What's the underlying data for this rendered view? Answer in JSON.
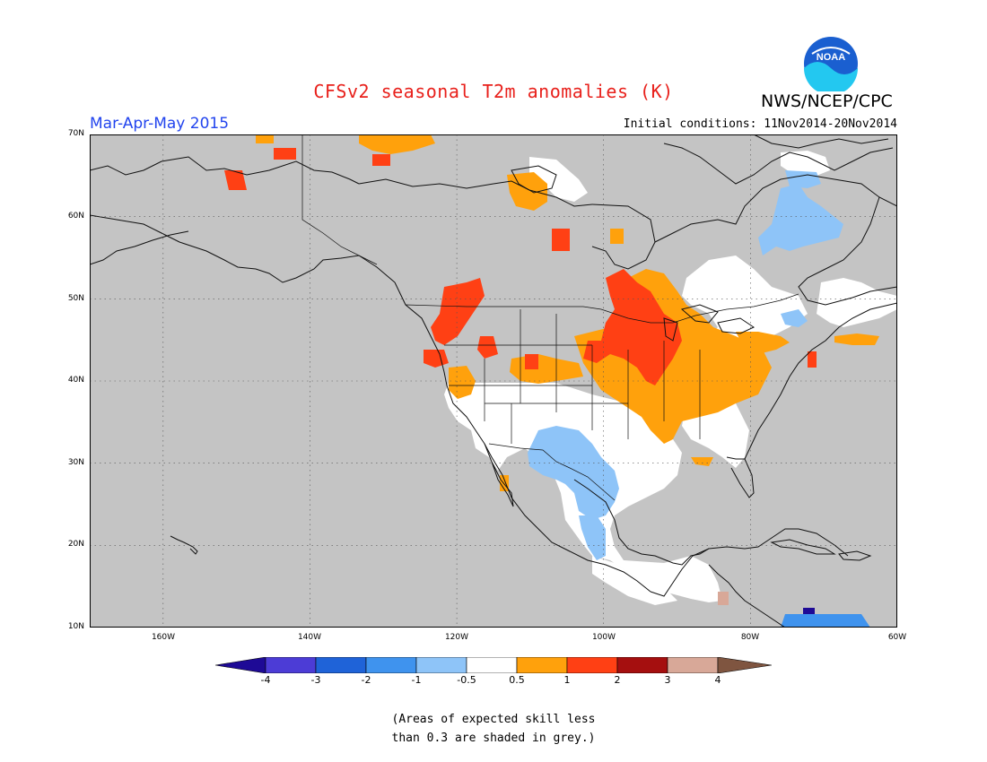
{
  "header": {
    "title": "CFSv2 seasonal T2m anomalies (K)",
    "org": "NWS/NCEP/CPC",
    "logo_text": "NOAA",
    "season": "Mar-Apr-May 2015",
    "initial_conditions": "Initial conditions: 11Nov2014-20Nov2014"
  },
  "map": {
    "extent": {
      "lon_min": -170,
      "lon_max": -60,
      "lat_min": 10,
      "lat_max": 70
    },
    "lat_labels": [
      "70N",
      "60N",
      "50N",
      "40N",
      "30N",
      "20N",
      "10N"
    ],
    "lon_labels": [
      "160W",
      "140W",
      "120W",
      "100W",
      "80W",
      "60W"
    ],
    "background_color": "#c4c4c4"
  },
  "colorbar": {
    "ticks": [
      "-4",
      "-3",
      "-2",
      "-1",
      "-0.5",
      "0.5",
      "1",
      "2",
      "3",
      "4"
    ],
    "colors": [
      "#1e0a96",
      "#4c3cd6",
      "#1f63d8",
      "#3f93ee",
      "#8ec4f8",
      "#ffffff",
      "#ffa10c",
      "#ff4014",
      "#a50f0f",
      "#d8a898",
      "#7f5540"
    ]
  },
  "note": {
    "line1": "(Areas of expected skill less",
    "line2": "than 0.3 are shaded in grey.)"
  }
}
